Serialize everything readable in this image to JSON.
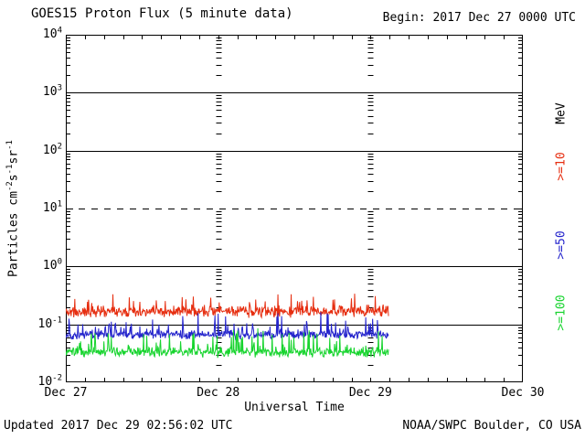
{
  "header": {
    "title": "GOES15 Proton Flux (5 minute data)",
    "begin": "Begin: 2017 Dec 27 0000 UTC"
  },
  "footer": {
    "updated": "Updated 2017 Dec 29 02:56:02 UTC",
    "credit": "NOAA/SWPC Boulder, CO USA"
  },
  "colors": {
    "background": "#ffffff",
    "axis": "#000000",
    "series_10mev": "#e62e10",
    "series_50mev": "#2424cc",
    "series_100mev": "#17d42e"
  },
  "chart_data": {
    "type": "line",
    "title": "GOES15 Proton Flux (5 minute data)",
    "xlabel": "Universal Time",
    "ylabel_text": "Particles cm-2s-1sr-1",
    "ylabel_parts": [
      {
        "text": "Particles cm"
      },
      {
        "sup": "-2"
      },
      {
        "text": "s"
      },
      {
        "sup": "-1"
      },
      {
        "text": "sr"
      },
      {
        "sup": "-1"
      }
    ],
    "y_scale": "log",
    "ylim": [
      0.01,
      10000
    ],
    "y_ticks": [
      {
        "base": "10",
        "exp": "4"
      },
      {
        "base": "10",
        "exp": "3"
      },
      {
        "base": "10",
        "exp": "2"
      },
      {
        "base": "10",
        "exp": "1"
      },
      {
        "base": "10",
        "exp": "0"
      },
      {
        "base": "10",
        "exp": "-1"
      },
      {
        "base": "10",
        "exp": "-2"
      }
    ],
    "x_ticks": [
      "Dec 27",
      "Dec 28",
      "Dec 29",
      "Dec 30"
    ],
    "x_range_days": 3,
    "x_minor_tick_hours": 3,
    "grid": {
      "h_solid_decades": [
        3,
        2,
        0,
        -1
      ],
      "h_dashed_decades": [
        1
      ],
      "v_dashed_days": [
        1,
        2
      ]
    },
    "mev_label": "MeV",
    "sample_interval_minutes": 5,
    "data_start": "2017 Dec 27 0000 UTC",
    "data_end_day": 2.12,
    "series": [
      {
        "label": ">=10",
        "name": ">=10 MeV",
        "color": "#e62e10",
        "median_flux": 0.17,
        "min_flux": 0.11,
        "max_flux": 0.45,
        "base_log10": -0.78,
        "noise_log10": 0.11,
        "spike_prob": 0.12,
        "spike_log10": 0.3,
        "clamp_log10": [
          -1.0,
          -0.35
        ],
        "seed": 11
      },
      {
        "label": ">=50",
        "name": ">=50 MeV",
        "color": "#2424cc",
        "median_flux": 0.066,
        "min_flux": 0.045,
        "max_flux": 0.19,
        "base_log10": -1.18,
        "noise_log10": 0.09,
        "spike_prob": 0.14,
        "spike_log10": 0.36,
        "clamp_log10": [
          -1.33,
          -0.72
        ],
        "seed": 22
      },
      {
        "label": ">=100",
        "name": ">=100 MeV",
        "color": "#17d42e",
        "median_flux": 0.033,
        "min_flux": 0.022,
        "max_flux": 0.095,
        "base_log10": -1.48,
        "noise_log10": 0.1,
        "spike_prob": 0.14,
        "spike_log10": 0.36,
        "clamp_log10": [
          -1.63,
          -1.02
        ],
        "seed": 33
      }
    ]
  }
}
